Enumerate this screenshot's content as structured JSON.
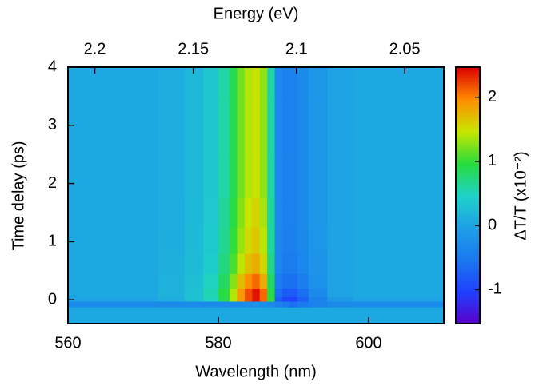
{
  "chart_data": {
    "type": "heatmap",
    "xlabel": "Wavelength (nm)",
    "ylabel": "Time delay (ps)",
    "x2label": "Energy (eV)",
    "clabel": "ΔT/T (x10⁻²)",
    "xlim": [
      560,
      610
    ],
    "xticks": [
      560,
      580,
      600
    ],
    "ylim": [
      -0.41,
      4
    ],
    "yticks": [
      0,
      1,
      2,
      3,
      4
    ],
    "x2ticks": [
      2.2,
      2.15,
      2.1,
      2.05
    ],
    "clim": [
      -1.53,
      2.47
    ],
    "cticks": [
      -1,
      0,
      1,
      2
    ],
    "colormap": [
      "#5a00c8",
      "#2040ff",
      "#1a78f0",
      "#1ea0e6",
      "#1ed2c8",
      "#28dc3c",
      "#c8e600",
      "#ff8c00",
      "#dc0000"
    ],
    "x": [
      560,
      565,
      570,
      574,
      577,
      579,
      581,
      582,
      583,
      584,
      585,
      586,
      587,
      588,
      589,
      590,
      591,
      593,
      596,
      600,
      605,
      610
    ],
    "y": [
      -0.4,
      -0.2,
      -0.05,
      0,
      0.1,
      0.3,
      0.6,
      1,
      1.5,
      2,
      3,
      4
    ],
    "z": [
      [
        0.05,
        0.05,
        0.05,
        0.05,
        0.05,
        0.05,
        0.05,
        0.05,
        0.05,
        0.05,
        0.05,
        0.05,
        0.05,
        0.05,
        0.05,
        0.05,
        0.05,
        0.05,
        0.05,
        0.05,
        0.05,
        0.05
      ],
      [
        0.05,
        0.05,
        0.05,
        0.05,
        0.05,
        0.05,
        0.05,
        0.05,
        0.05,
        0.05,
        0.05,
        0.05,
        0.05,
        0.05,
        0.05,
        0.05,
        0.05,
        0.05,
        0.05,
        0.05,
        0.05,
        0.05
      ],
      [
        -0.3,
        -0.3,
        -0.3,
        -0.3,
        -0.3,
        -0.3,
        -0.3,
        -0.3,
        -0.3,
        -0.25,
        -0.2,
        -0.25,
        -0.3,
        -0.4,
        -0.5,
        -0.6,
        -0.5,
        -0.4,
        -0.3,
        -0.3,
        -0.3,
        -0.3
      ],
      [
        0,
        0,
        0,
        0.1,
        0.3,
        0.5,
        0.9,
        1.4,
        1.9,
        2.2,
        2.4,
        2.1,
        1,
        -0.75,
        -1,
        -1,
        -0.75,
        -0.4,
        -0.1,
        0,
        0,
        0
      ],
      [
        0.05,
        0.05,
        0.05,
        0.15,
        0.3,
        0.55,
        0.95,
        1.4,
        1.9,
        2.2,
        2.4,
        2.1,
        0.95,
        -0.6,
        -0.8,
        -0.8,
        -0.6,
        -0.3,
        0,
        0.05,
        0.05,
        0.05
      ],
      [
        0.05,
        0.05,
        0.05,
        0.14,
        0.28,
        0.5,
        0.84,
        1.26,
        1.7,
        1.96,
        2.1,
        1.8,
        0.84,
        -0.45,
        -0.6,
        -0.6,
        -0.45,
        -0.22,
        0,
        0.05,
        0.05,
        0.05
      ],
      [
        0.05,
        0.05,
        0.05,
        0.12,
        0.24,
        0.42,
        0.72,
        1.08,
        1.44,
        1.68,
        1.8,
        1.56,
        0.72,
        -0.36,
        -0.48,
        -0.48,
        -0.36,
        -0.18,
        0,
        0.05,
        0.05,
        0.05
      ],
      [
        0.05,
        0.05,
        0.05,
        0.11,
        0.22,
        0.38,
        0.66,
        1,
        1.32,
        1.54,
        1.65,
        1.43,
        0.66,
        -0.33,
        -0.44,
        -0.44,
        -0.33,
        -0.16,
        0,
        0.05,
        0.05,
        0.05
      ],
      [
        0.05,
        0.05,
        0.05,
        0.1,
        0.21,
        0.37,
        0.63,
        0.95,
        1.26,
        1.47,
        1.58,
        1.37,
        0.63,
        -0.3,
        -0.4,
        -0.4,
        -0.3,
        -0.15,
        0,
        0.05,
        0.05,
        0.05
      ],
      [
        0.05,
        0.05,
        0.05,
        0.1,
        0.2,
        0.35,
        0.6,
        0.9,
        1.2,
        1.4,
        1.5,
        1.3,
        0.6,
        -0.3,
        -0.4,
        -0.4,
        -0.3,
        -0.15,
        0,
        0.05,
        0.05,
        0.05
      ],
      [
        0.05,
        0.05,
        0.05,
        0.1,
        0.2,
        0.35,
        0.6,
        0.9,
        1.2,
        1.4,
        1.5,
        1.3,
        0.6,
        -0.3,
        -0.4,
        -0.4,
        -0.3,
        -0.15,
        0,
        0.05,
        0.05,
        0.05
      ],
      [
        0.05,
        0.05,
        0.05,
        0.1,
        0.2,
        0.35,
        0.6,
        0.9,
        1.2,
        1.4,
        1.5,
        1.3,
        0.6,
        -0.3,
        -0.4,
        -0.4,
        -0.3,
        -0.15,
        0,
        0.05,
        0.05,
        0.05
      ]
    ]
  }
}
